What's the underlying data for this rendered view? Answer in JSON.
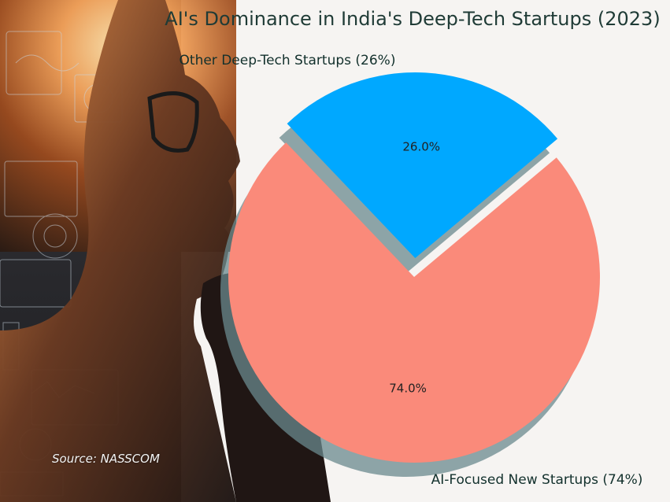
{
  "chart_data": {
    "type": "pie",
    "title": "AI's Dominance in India's Deep-Tech Startups (2023)",
    "slices": [
      {
        "label": "AI-Focused New Startups (74%)",
        "value": 74,
        "pct_label": "74.0%",
        "color": "#fa8a7a",
        "exploded": false
      },
      {
        "label": "Other Deep-Tech Startups (26%)",
        "value": 26,
        "pct_label": "26.0%",
        "color": "#00a8ff",
        "exploded": true
      }
    ],
    "shadow": true,
    "source": "Source: NASSCOM"
  },
  "colors": {
    "panel_background": "#f6f4f2",
    "title_color": "#1f3b36",
    "shadow_color": "#6a8a8e"
  }
}
